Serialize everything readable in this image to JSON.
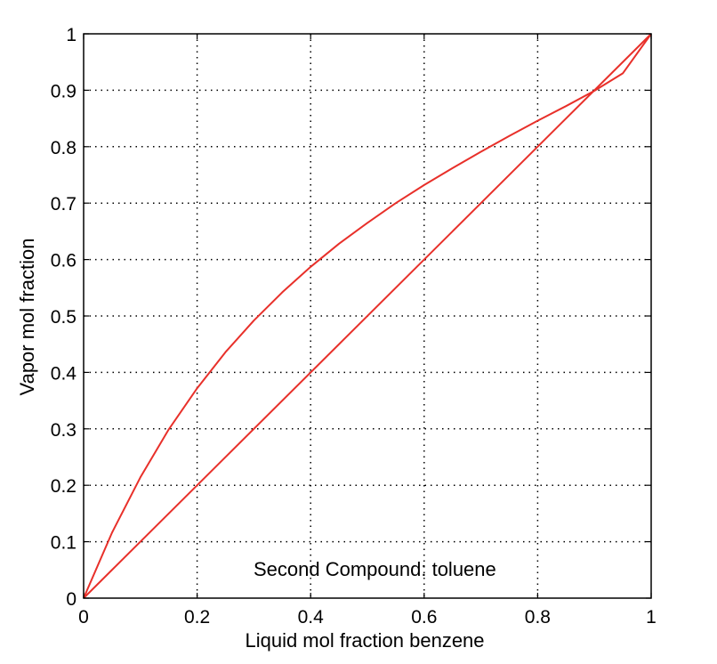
{
  "chart_data": {
    "type": "line",
    "xlabel": "Liquid mol fraction  benzene",
    "ylabel": "Vapor mol fraction",
    "annotation": "Second Compound:  toluene",
    "xlim": [
      0,
      1
    ],
    "ylim": [
      0,
      1
    ],
    "xticks": [
      "0",
      "0.2",
      "0.4",
      "0.6",
      "0.8",
      "1"
    ],
    "yticks": [
      "0",
      "0.1",
      "0.2",
      "0.3",
      "0.4",
      "0.5",
      "0.6",
      "0.7",
      "0.8",
      "0.9",
      "1"
    ],
    "grid": true,
    "series": [
      {
        "color": "#e8302a",
        "x": [
          0,
          0.05,
          0.1,
          0.15,
          0.2,
          0.25,
          0.3,
          0.35,
          0.4,
          0.45,
          0.5,
          0.55,
          0.6,
          0.65,
          0.7,
          0.75,
          0.8,
          0.85,
          0.9,
          0.95,
          1
        ],
        "y": [
          0,
          0.116,
          0.214,
          0.299,
          0.372,
          0.436,
          0.492,
          0.542,
          0.587,
          0.628,
          0.665,
          0.7,
          0.732,
          0.762,
          0.791,
          0.819,
          0.846,
          0.872,
          0.899,
          0.93,
          1
        ]
      },
      {
        "color": "#e8302a",
        "x": [
          0,
          1
        ],
        "y": [
          0,
          1
        ]
      }
    ]
  }
}
